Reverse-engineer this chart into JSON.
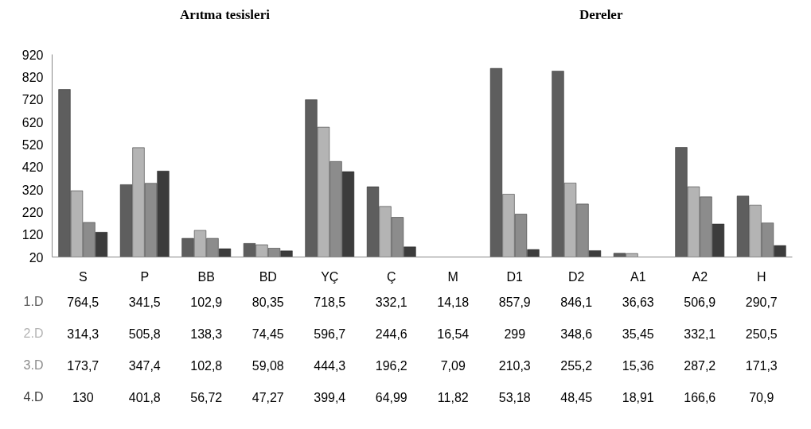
{
  "chart_data": {
    "type": "bar",
    "annotations": [
      "Arıtma tesisleri",
      "Dereler"
    ],
    "categories": [
      "S",
      "P",
      "BB",
      "BD",
      "YÇ",
      "Ç",
      "M",
      "D1",
      "D2",
      "A1",
      "A2",
      "H"
    ],
    "series": [
      {
        "name": "1.D",
        "color": "#5e5e5e",
        "values": [
          764.5,
          341.5,
          102.9,
          80.35,
          718.5,
          332.1,
          null,
          857.9,
          846.1,
          36.63,
          506.9,
          290.7
        ],
        "value_labels": [
          "764,5",
          "341,5",
          "102,9",
          "80,35",
          "718,5",
          "332,1",
          "14,18",
          "857,9",
          "846,1",
          "36,63",
          "506,9",
          "290,7"
        ]
      },
      {
        "name": "2.D",
        "color": "#b4b4b4",
        "values": [
          314.3,
          505.8,
          138.3,
          74.45,
          596.7,
          244.6,
          null,
          299,
          348.6,
          35.45,
          332.1,
          250.5
        ],
        "value_labels": [
          "314,3",
          "505,8",
          "138,3",
          "74,45",
          "596,7",
          "244,6",
          "16,54",
          "299",
          "348,6",
          "35,45",
          "332,1",
          "250,5"
        ]
      },
      {
        "name": "3.D",
        "color": "#8c8c8c",
        "values": [
          173.7,
          347.4,
          102.8,
          59.08,
          444.3,
          196.2,
          null,
          210.3,
          255.2,
          null,
          287.2,
          171.3
        ],
        "value_labels": [
          "173,7",
          "347,4",
          "102,8",
          "59,08",
          "444,3",
          "196,2",
          "7,09",
          "210,3",
          "255,2",
          "15,36",
          "287,2",
          "171,3"
        ]
      },
      {
        "name": "4.D",
        "color": "#3c3c3c",
        "values": [
          130,
          401.8,
          56.72,
          47.27,
          399.4,
          64.99,
          null,
          53.18,
          48.45,
          null,
          166.6,
          70.9
        ],
        "value_labels": [
          "130",
          "401,8",
          "56,72",
          "47,27",
          "399,4",
          "64,99",
          "11,82",
          "53,18",
          "48,45",
          "18,91",
          "166,6",
          "70,9"
        ]
      }
    ],
    "ylim": [
      20,
      920
    ],
    "yticks": [
      20,
      120,
      220,
      320,
      420,
      520,
      620,
      720,
      820,
      920
    ],
    "grid": false
  }
}
